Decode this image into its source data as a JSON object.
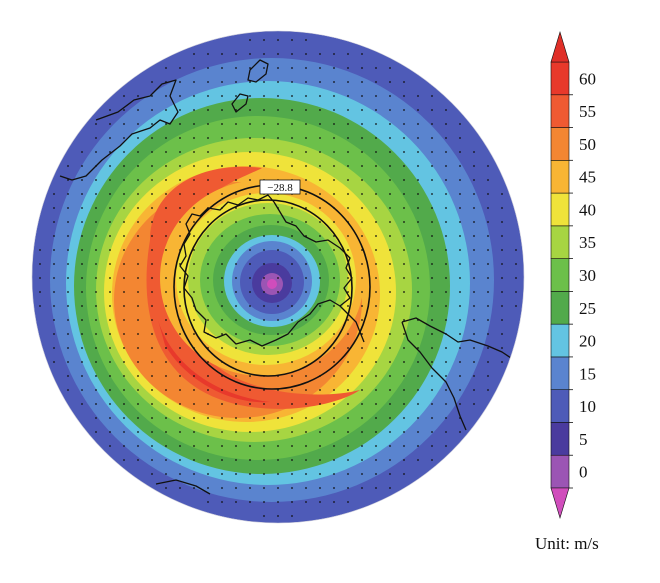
{
  "contour_label": "−28.8",
  "unit_label": "Unit: m/s",
  "colorbar": {
    "ticks": [
      "0",
      "5",
      "10",
      "15",
      "20",
      "25",
      "30",
      "35",
      "40",
      "45",
      "50",
      "55",
      "60"
    ],
    "colors": [
      "#9b55b4",
      "#4a3b9e",
      "#4e5bb8",
      "#5a84cf",
      "#63c4e2",
      "#52aa4b",
      "#6cc04a",
      "#a7d542",
      "#efe33a",
      "#f8b534",
      "#f38632",
      "#ef5a32",
      "#e8392b"
    ],
    "extend_max_color": "#e02f28",
    "extend_min_color": "#d04dbc"
  }
}
